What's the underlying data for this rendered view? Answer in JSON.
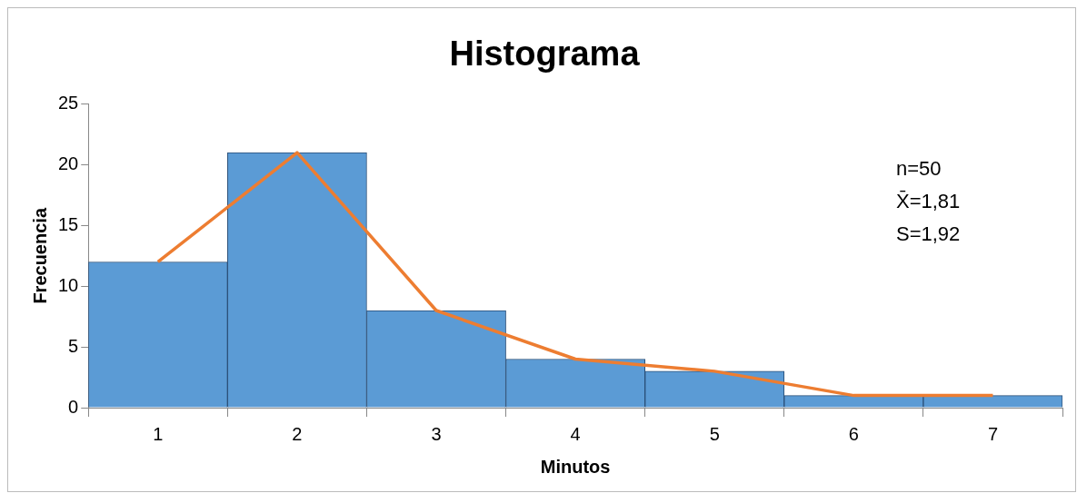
{
  "chart_data": {
    "type": "bar",
    "title": "Histograma",
    "xlabel": "Minutos",
    "ylabel": "Frecuencia",
    "categories": [
      "1",
      "2",
      "3",
      "4",
      "5",
      "6",
      "7"
    ],
    "series": [
      {
        "color": "#5b9bd5",
        "values": [
          12,
          21,
          8,
          4,
          3,
          1,
          1
        ]
      },
      {
        "type": "line",
        "color": "#ed7d31",
        "values": [
          12,
          21,
          8,
          4,
          3,
          1,
          1
        ]
      }
    ],
    "ylim": [
      0,
      25
    ],
    "yticks": [
      0,
      5,
      10,
      15,
      20,
      25
    ],
    "grid": false,
    "legend": false,
    "marker": "none",
    "annotations": [
      "n=50",
      "X̄=1,81",
      "S=1,92"
    ]
  }
}
